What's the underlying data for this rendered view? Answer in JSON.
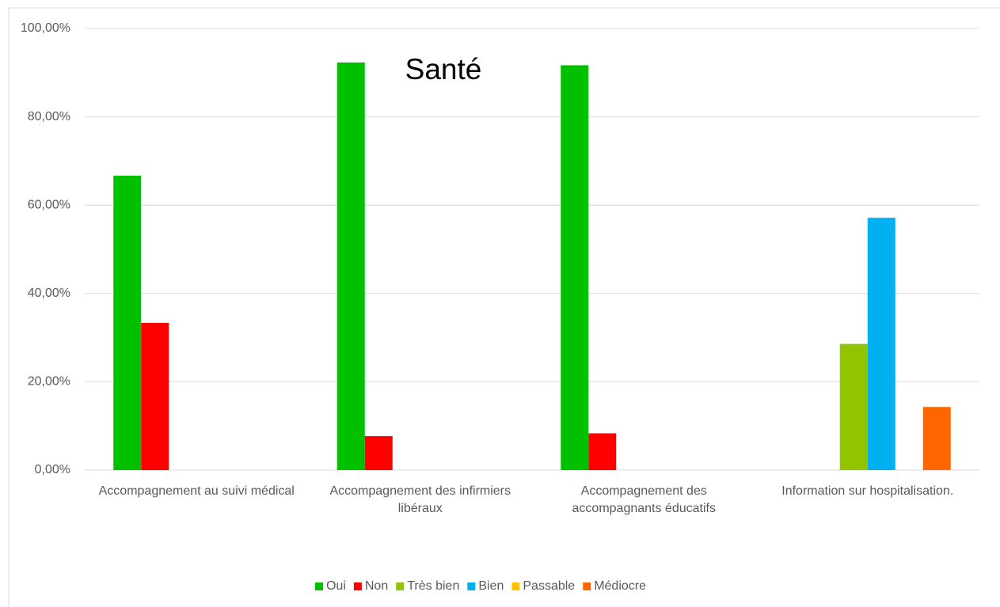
{
  "chart_data": {
    "type": "bar",
    "title": "Santé",
    "categories": [
      "Accompagnement au suivi médical",
      "Accompagnement des infirmiers libéraux",
      "Accompagnement des accompagnants éducatifs",
      "Information sur hospitalisation."
    ],
    "series": [
      {
        "name": "Oui",
        "color": "#00c000",
        "values": [
          66.67,
          92.31,
          91.67,
          null
        ]
      },
      {
        "name": "Non",
        "color": "#ff0000",
        "values": [
          33.33,
          7.69,
          8.33,
          null
        ]
      },
      {
        "name": "Très bien",
        "color": "#92c400",
        "values": [
          null,
          null,
          null,
          28.57
        ]
      },
      {
        "name": "Bien",
        "color": "#00b0f0",
        "values": [
          null,
          null,
          null,
          57.14
        ]
      },
      {
        "name": "Passable",
        "color": "#ffc000",
        "values": [
          null,
          null,
          null,
          0
        ]
      },
      {
        "name": "Médiocre",
        "color": "#ff6600",
        "values": [
          null,
          null,
          null,
          14.29
        ]
      }
    ],
    "ylim": [
      0,
      100
    ],
    "yticks": [
      {
        "value": 0,
        "label": "0,00%"
      },
      {
        "value": 20,
        "label": "20,00%"
      },
      {
        "value": 40,
        "label": "40,00%"
      },
      {
        "value": 60,
        "label": "60,00%"
      },
      {
        "value": 80,
        "label": "80,00%"
      },
      {
        "value": 100,
        "label": "100,00%"
      }
    ],
    "grid": true,
    "legend": "bottom"
  }
}
